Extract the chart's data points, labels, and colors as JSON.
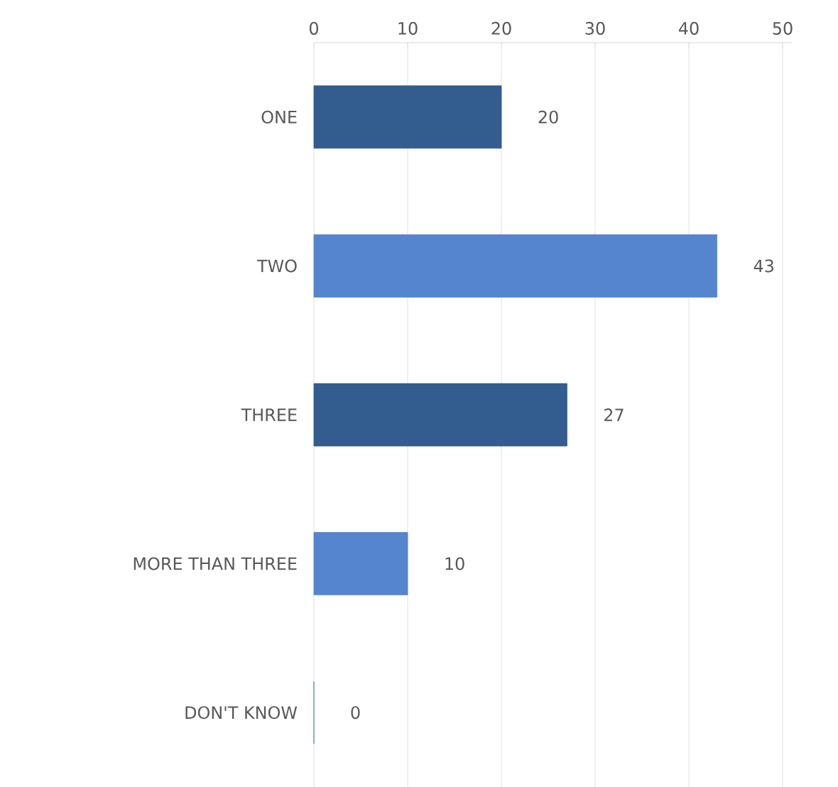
{
  "chart_data": {
    "type": "bar",
    "orientation": "horizontal",
    "categories": [
      "ONE",
      "TWO",
      "THREE",
      "MORE THAN THREE",
      "DON'T KNOW"
    ],
    "values": [
      20,
      43,
      27,
      10,
      0
    ],
    "colors": [
      "#335c8f",
      "#5585cf",
      "#335c8f",
      "#5585cf",
      "#5585cf"
    ],
    "xlim": [
      0,
      51
    ],
    "xticks": [
      0,
      10,
      20,
      30,
      40,
      50
    ],
    "grid": "x",
    "data_labels": true
  }
}
